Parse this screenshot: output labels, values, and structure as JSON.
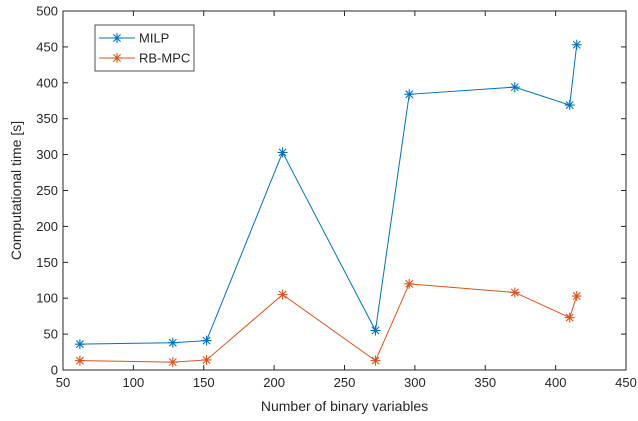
{
  "chart_data": {
    "type": "line",
    "title": "",
    "xlabel": "Number of binary variables",
    "ylabel": "Computational time [s]",
    "xlim": [
      50,
      450
    ],
    "ylim": [
      0,
      500
    ],
    "xticks": [
      50,
      100,
      150,
      200,
      250,
      300,
      350,
      400,
      450
    ],
    "yticks": [
      0,
      50,
      100,
      150,
      200,
      250,
      300,
      350,
      400,
      450,
      500
    ],
    "grid": false,
    "legend_position": "top-left",
    "series": [
      {
        "name": "MILP",
        "color": "#0072BD",
        "marker": "asterisk",
        "x": [
          62,
          128,
          152,
          206,
          272,
          296,
          371,
          410,
          415
        ],
        "y": [
          36,
          38,
          41,
          303,
          55,
          384,
          394,
          369,
          453
        ]
      },
      {
        "name": "RB-MPC",
        "color": "#D95319",
        "marker": "asterisk",
        "x": [
          62,
          128,
          152,
          206,
          272,
          296,
          371,
          410,
          415
        ],
        "y": [
          13,
          11,
          14,
          105,
          13,
          120,
          108,
          73,
          103
        ]
      }
    ]
  }
}
